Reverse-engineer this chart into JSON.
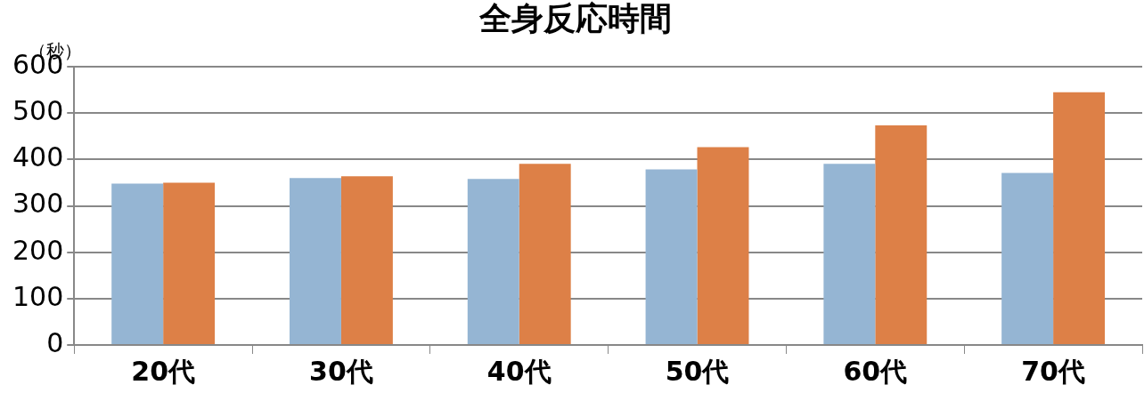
{
  "chart_data": {
    "type": "bar",
    "title": "全身反応時間",
    "ylabel": "（秒）",
    "categories": [
      "20代",
      "30代",
      "40代",
      "50代",
      "60代",
      "70代"
    ],
    "series": [
      {
        "color": "#95b5d3",
        "values": [
          348,
          360,
          358,
          379,
          391,
          371
        ]
      },
      {
        "color": "#dd8047",
        "values": [
          350,
          364,
          391,
          427,
          474,
          545
        ]
      }
    ],
    "ylim": [
      0,
      600
    ],
    "yticks": [
      0,
      100,
      200,
      300,
      400,
      500,
      600
    ],
    "grid": "y",
    "legend": false
  }
}
